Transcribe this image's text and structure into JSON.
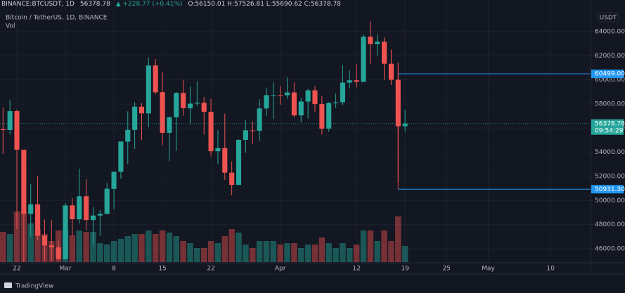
{
  "chart_data": {
    "type": "candlestick",
    "title": "BINANCE:BTCUSDT, 1D",
    "change": "▲ +228.77 (+0.41%)",
    "ohlc_text": "O:56150.01 H:57526.81 L:55690.62 C:56378.78",
    "legend_title": "Bitcoin / TetherUS, 1D, BINANCE",
    "volume_label": "Vol",
    "currency": "USDT",
    "branding": "TradingView",
    "colors": {
      "up": "#26a69a",
      "down": "#ef5350"
    },
    "grid": true,
    "categories": [
      null,
      null,
      "22",
      null,
      null,
      null,
      null,
      null,
      null,
      "Mar",
      null,
      null,
      null,
      null,
      null,
      null,
      "8",
      null,
      null,
      null,
      null,
      null,
      null,
      "15",
      null,
      null,
      null,
      null,
      null,
      null,
      "22",
      null,
      null,
      null,
      null,
      null,
      null,
      null,
      null,
      null,
      "Apr",
      null,
      null,
      null,
      null,
      null,
      null,
      null,
      null,
      null,
      null,
      "12",
      null,
      null,
      null,
      null,
      null,
      null,
      "19",
      null,
      null,
      null,
      null,
      null,
      "25",
      null,
      null,
      null,
      null,
      null,
      "May",
      null,
      null,
      null,
      null,
      null,
      null,
      null,
      null,
      "10",
      null,
      null,
      null,
      null,
      null
    ],
    "open": [
      55906,
      55841,
      57412,
      54204,
      48891,
      49676,
      47073,
      46276,
      46104,
      45134,
      49595,
      48436,
      50349,
      48374,
      48746,
      48882,
      50959,
      52375,
      54874,
      55851,
      57773,
      57221,
      61188,
      58976,
      55605,
      56900,
      58912,
      57641,
      58030,
      58100,
      57351,
      54083,
      54342,
      52303,
      51293,
      55025,
      55817,
      55777,
      57628,
      58730,
      58739,
      58720,
      58950,
      57051,
      58202,
      59129,
      57991,
      55953,
      58077,
      58142,
      59769,
      59964,
      59834,
      63577,
      62959,
      63159,
      61334,
      60006,
      56150,
      null,
      null,
      null,
      null,
      null,
      null,
      null,
      null,
      null,
      null,
      null,
      null,
      null,
      null,
      null,
      null,
      null,
      null,
      null,
      null,
      null,
      null,
      null,
      null,
      null,
      null
    ],
    "high": [
      57700,
      58352,
      57534,
      54204,
      51374,
      52041,
      48424,
      48394,
      46638,
      49790,
      50200,
      52640,
      51773,
      49448,
      49200,
      51450,
      52402,
      54895,
      57387,
      58150,
      58058,
      61844,
      61724,
      60633,
      56938,
      58981,
      60000,
      59468,
      59880,
      58589,
      58430,
      55830,
      57200,
      53237,
      55073,
      56700,
      56559,
      58400,
      59368,
      59800,
      59490,
      60200,
      59791,
      58500,
      59251,
      59474,
      58650,
      58153,
      58869,
      61220,
      60790,
      61300,
      63777,
      64854,
      63800,
      63520,
      62506,
      61426,
      57526.81,
      null,
      null,
      null,
      null,
      null,
      null,
      null,
      null,
      null,
      null,
      null,
      null,
      null,
      null,
      null,
      null,
      null,
      null,
      null,
      null,
      null,
      null,
      null,
      null,
      null,
      null
    ],
    "low": [
      53863,
      55477,
      47622,
      44892,
      47003,
      46674,
      45000,
      45000,
      45000,
      45115,
      47047,
      48100,
      47500,
      46300,
      47070,
      48882,
      49274,
      51789,
      53005,
      54272,
      55013,
      56078,
      58800,
      54600,
      53271,
      54123,
      57023,
      56270,
      57820,
      55450,
      53650,
      53000,
      51700,
      50427,
      51279,
      53962,
      54691,
      54900,
      57000,
      56769,
      57935,
      58428,
      56880,
      56478,
      56800,
      57333,
      55473,
      55700,
      57670,
      57903,
      59289,
      59371,
      59799,
      61301,
      62020,
      60000,
      59580,
      51541,
      55690.62,
      null,
      null,
      null,
      null,
      null,
      null,
      null,
      null,
      null,
      null,
      null,
      null,
      null,
      null,
      null,
      null,
      null,
      null,
      null,
      null,
      null,
      null,
      null,
      null,
      null,
      null
    ],
    "close": [
      55841,
      57408,
      54204,
      48891,
      49676,
      47073,
      46276,
      46106,
      45135,
      49587,
      48440,
      50349,
      48374,
      48751,
      48882,
      50971,
      52375,
      54884,
      55851,
      57773,
      57221,
      61188,
      58968,
      55605,
      56900,
      58912,
      57648,
      58030,
      58102,
      57351,
      54083,
      54340,
      52303,
      51293,
      55025,
      55817,
      55777,
      57628,
      58730,
      58741,
      58720,
      58950,
      57051,
      58202,
      59129,
      57991,
      55953,
      58077,
      58142,
      59769,
      59964,
      59834,
      63577,
      62959,
      63159,
      61334,
      60006,
      56150,
      56378.78,
      null,
      null,
      null,
      null,
      null,
      null,
      null,
      null,
      null,
      null,
      null,
      null,
      null,
      null,
      null,
      null,
      null,
      null,
      null,
      null,
      null,
      null,
      null,
      null,
      null,
      null
    ],
    "volume": [
      43,
      40,
      72,
      73,
      55,
      47,
      40,
      30,
      45,
      45,
      38,
      45,
      43,
      43,
      27,
      25,
      30,
      33,
      37,
      40,
      40,
      45,
      40,
      45,
      42,
      37,
      30,
      27,
      20,
      20,
      30,
      27,
      37,
      47,
      42,
      25,
      20,
      30,
      30,
      30,
      25,
      27,
      27,
      20,
      25,
      25,
      35,
      27,
      20,
      27,
      20,
      25,
      45,
      45,
      30,
      45,
      30,
      65,
      23,
      null,
      null,
      null,
      null,
      null,
      null,
      null,
      null,
      null,
      null,
      null,
      null,
      null,
      null,
      null,
      null,
      null,
      null,
      null,
      null,
      null,
      null,
      null,
      null,
      null,
      null
    ],
    "ylim": [
      44830,
      65920
    ],
    "yticks": [
      {
        "value": 46000,
        "label": "46000.00"
      },
      {
        "value": 48000,
        "label": "48000.00"
      },
      {
        "value": 50000,
        "label": "50000.00"
      },
      {
        "value": 52000,
        "label": "52000.00"
      },
      {
        "value": 54000,
        "label": "54000.00"
      },
      {
        "value": 56000,
        "label": "56000.00"
      },
      {
        "value": 58000,
        "label": "58000.00"
      },
      {
        "value": 60000,
        "label": "60000.00"
      },
      {
        "value": 62000,
        "label": "62000.00"
      },
      {
        "value": 64000,
        "label": "64000.00"
      }
    ],
    "levels": [
      {
        "value": 60499,
        "label": "60499.00",
        "color": "#2196f3"
      },
      {
        "value": 50931.3,
        "label": "50931.30",
        "color": "#2196f3"
      }
    ],
    "last_price": 56378.78,
    "countdown": "09:54:29"
  }
}
